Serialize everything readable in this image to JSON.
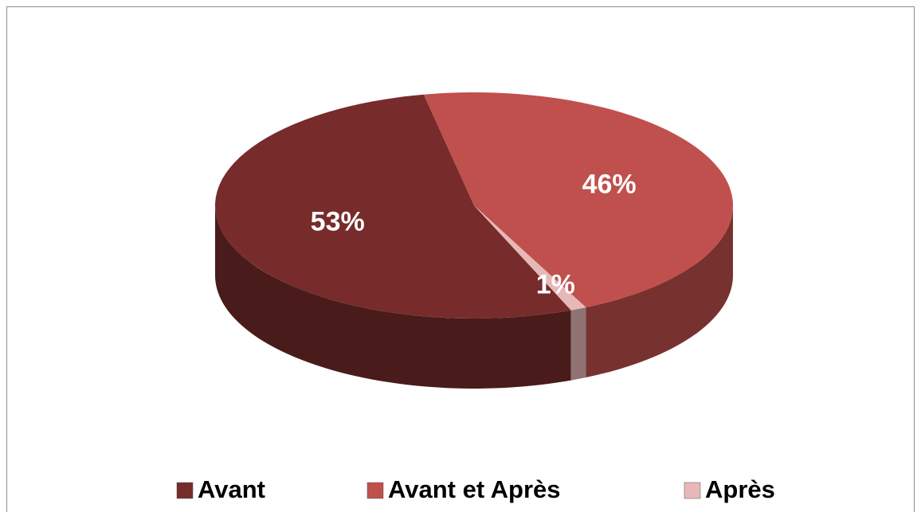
{
  "chart_data": {
    "type": "pie",
    "categories": [
      "Avant",
      "Avant et Après",
      "Après"
    ],
    "values": [
      53,
      46,
      1
    ],
    "value_labels": [
      "53%",
      "46%",
      "1%"
    ],
    "colors": [
      "#772b2b",
      "#c0504d",
      "#e6b9b8"
    ],
    "legend": "bottom"
  }
}
